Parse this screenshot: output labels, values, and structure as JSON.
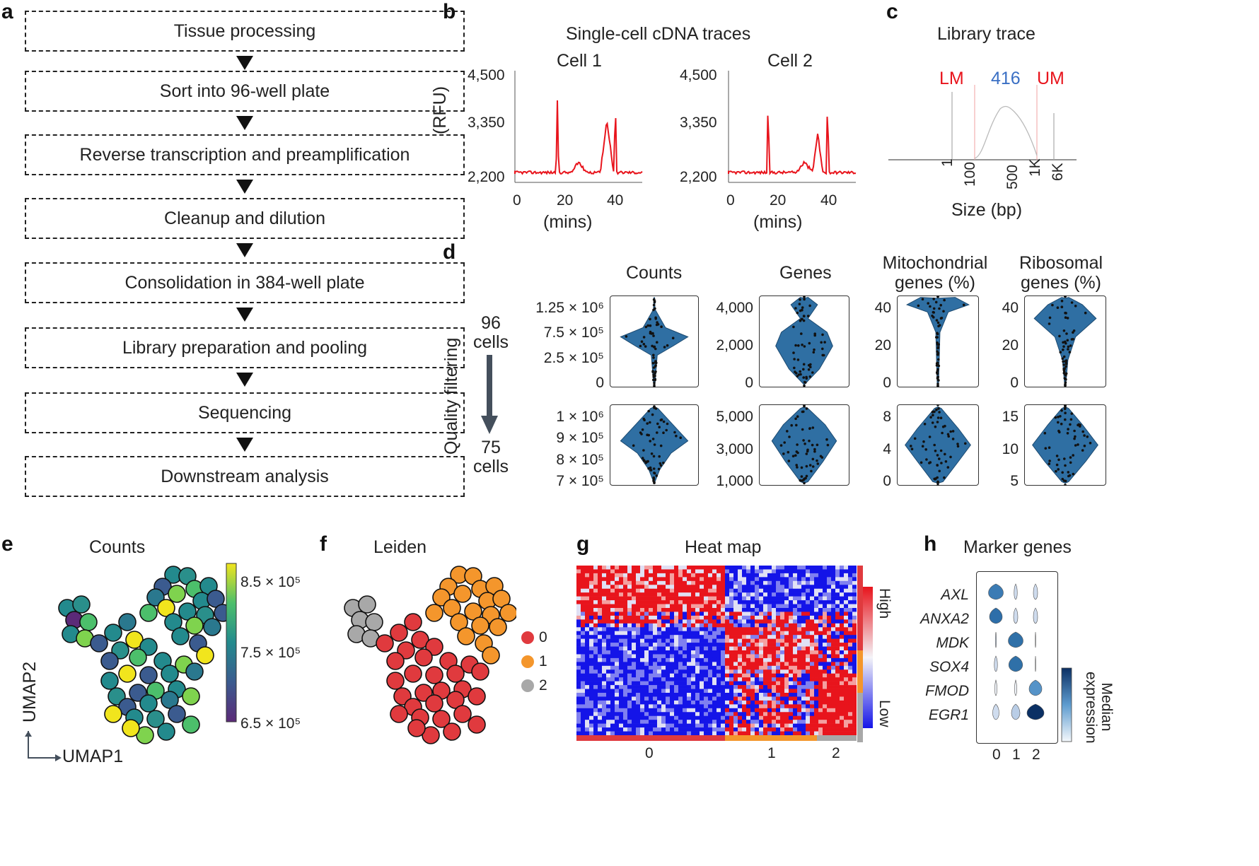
{
  "labels": {
    "a": "a",
    "b": "b",
    "c": "c",
    "d": "d",
    "e": "e",
    "f": "f",
    "g": "g",
    "h": "h"
  },
  "workflow": {
    "steps": [
      "Tissue processing",
      "Sort into 96-well plate",
      "Reverse transcription and preamplification",
      "Cleanup and dilution",
      "Consolidation in 384-well plate",
      "Library preparation and pooling",
      "Sequencing",
      "Downstream analysis"
    ]
  },
  "panel_b": {
    "title": "Single-cell cDNA traces",
    "cell1": "Cell 1",
    "cell2": "Cell 2",
    "ylabel": "(RFU)",
    "xlabel": "(mins)",
    "yticks": [
      "4,500",
      "3,350",
      "2,200"
    ],
    "xticks": [
      "0",
      "20",
      "40"
    ]
  },
  "panel_c": {
    "title": "Library trace",
    "lm": "LM",
    "peak": "416",
    "um": "UM",
    "xticks": [
      "1",
      "100",
      "500",
      "1K",
      "6K"
    ],
    "xlabel": "Size (bp)",
    "colors": {
      "marker": "#e8141c",
      "peak": "#3a6fc4"
    }
  },
  "panel_d": {
    "col_titles": [
      "Counts",
      "Genes",
      "Mitochondrial genes (%)",
      "Ribosomal genes (%)"
    ],
    "before": "96 cells",
    "after": "75 cells",
    "side": "Quality filtering",
    "top_yticks": [
      [
        "1.25 × 10⁶",
        "7.5 × 10⁵",
        "2.5 × 10⁵",
        "0"
      ],
      [
        "4,000",
        "2,000",
        "0"
      ],
      [
        "40",
        "20",
        "0"
      ],
      [
        "40",
        "20",
        "0"
      ]
    ],
    "bottom_yticks": [
      [
        "1 × 10⁶",
        "9 × 10⁵",
        "8 × 10⁵",
        "7 × 10⁵"
      ],
      [
        "5,000",
        "3,000",
        "1,000"
      ],
      [
        "8",
        "4",
        "0"
      ],
      [
        "15",
        "10",
        "5"
      ]
    ],
    "violin_color": "#2f6fa3"
  },
  "panel_e": {
    "title": "Counts",
    "colorbar_ticks": [
      "8.5 × 10⁵",
      "7.5 × 10⁵",
      "6.5 × 10⁵"
    ],
    "umap1": "UMAP1",
    "umap2": "UMAP2"
  },
  "panel_f": {
    "title": "Leiden",
    "legend": [
      {
        "label": "0",
        "color": "#e03a3e"
      },
      {
        "label": "1",
        "color": "#f4962c"
      },
      {
        "label": "2",
        "color": "#a8a8a8"
      }
    ]
  },
  "panel_g": {
    "title": "Heat map",
    "high": "High",
    "low": "Low",
    "clusters": [
      "0",
      "1",
      "2"
    ]
  },
  "panel_h": {
    "title": "Marker genes",
    "genes": [
      "AXL",
      "ANXA2",
      "MDK",
      "SOX4",
      "FMOD",
      "EGR1"
    ],
    "clusters": [
      "0",
      "1",
      "2"
    ],
    "cbar_label": "Median expression"
  }
}
